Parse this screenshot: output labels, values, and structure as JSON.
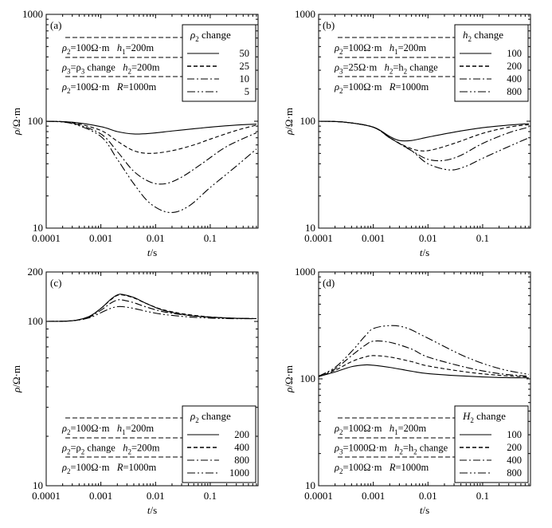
{
  "chart_data": [
    {
      "type": "line",
      "panel_label": "(a)",
      "xlabel": "t/s",
      "ylabel": "ρ/Ω·m",
      "xscale": "log",
      "yscale": "log",
      "xlim": [
        0.0001,
        0.75
      ],
      "ylim": [
        10,
        1000
      ],
      "x_tick_labels": [
        "0.0001",
        "0.001",
        "0.01",
        "0.1"
      ],
      "y_tick_labels": [
        "10",
        "100",
        "1000"
      ],
      "x_tick_values": [
        0.0001,
        0.001,
        0.01,
        0.1
      ],
      "y_tick_values": [
        10,
        100,
        1000
      ],
      "annotation_lines": [
        [
          "ρ",
          "2",
          "=100Ω·m",
          "h",
          "1",
          "=200m"
        ],
        [
          "ρ",
          "3",
          "=ρ",
          "3",
          " change",
          "h",
          "2",
          "=200m"
        ],
        [
          "ρ",
          "2",
          "=100Ω·m",
          "R",
          "",
          "=1000m"
        ]
      ],
      "legend": {
        "title": "ρ2 change",
        "title_sym": "ρ",
        "title_sub": "2",
        "title_rest": " change",
        "position": "top-right",
        "entries": [
          "50",
          "25",
          "10",
          "5"
        ]
      },
      "series": [
        {
          "name": "50",
          "style": "solid",
          "x": [
            0.0001,
            0.0003,
            0.001,
            0.002,
            0.004,
            0.008,
            0.02,
            0.05,
            0.1,
            0.3,
            0.7
          ],
          "y": [
            100,
            98,
            89,
            80,
            76,
            77,
            81,
            85,
            88,
            92,
            94
          ]
        },
        {
          "name": "25",
          "style": "dashed",
          "x": [
            0.0001,
            0.0003,
            0.001,
            0.002,
            0.004,
            0.008,
            0.02,
            0.05,
            0.1,
            0.3,
            0.7
          ],
          "y": [
            100,
            97,
            82,
            65,
            53,
            50,
            53,
            60,
            68,
            82,
            92
          ]
        },
        {
          "name": "10",
          "style": "dashdot",
          "x": [
            0.0001,
            0.0003,
            0.001,
            0.002,
            0.004,
            0.008,
            0.015,
            0.03,
            0.07,
            0.2,
            0.7
          ],
          "y": [
            100,
            96,
            76,
            52,
            34,
            27,
            26,
            30,
            40,
            58,
            78
          ]
        },
        {
          "name": "5",
          "style": "dashdotdot",
          "x": [
            0.0001,
            0.0003,
            0.001,
            0.002,
            0.004,
            0.008,
            0.018,
            0.04,
            0.1,
            0.3,
            0.7
          ],
          "y": [
            100,
            95,
            72,
            44,
            26,
            17,
            14,
            16,
            24,
            38,
            55
          ]
        }
      ]
    },
    {
      "type": "line",
      "panel_label": "(b)",
      "xlabel": "t/s",
      "ylabel": "ρ/Ω·m",
      "xscale": "log",
      "yscale": "log",
      "xlim": [
        0.0001,
        0.75
      ],
      "ylim": [
        10,
        1000
      ],
      "x_tick_labels": [
        "0.0001",
        "0.001",
        "0.01",
        "0.1"
      ],
      "y_tick_labels": [
        "10",
        "100",
        "1000"
      ],
      "x_tick_values": [
        0.0001,
        0.001,
        0.01,
        0.1
      ],
      "y_tick_values": [
        10,
        100,
        1000
      ],
      "annotation_lines": [
        [
          "ρ",
          "2",
          "=100Ω·m",
          "h",
          "1",
          "=200m"
        ],
        [
          "ρ",
          "3",
          "=25Ω·m",
          "h",
          "2",
          "=h",
          "2",
          " change"
        ],
        [
          "ρ",
          "2",
          "=100Ω·m",
          "R",
          "",
          "=1000m"
        ]
      ],
      "legend": {
        "title": "h2 change",
        "title_sym": "h",
        "title_sub": "2",
        "title_rest": " change",
        "position": "top-right",
        "entries": [
          "100",
          "200",
          "400",
          "800"
        ]
      },
      "series": [
        {
          "name": "100",
          "style": "solid",
          "x": [
            0.0001,
            0.0003,
            0.001,
            0.002,
            0.003,
            0.005,
            0.01,
            0.03,
            0.1,
            0.3,
            0.7
          ],
          "y": [
            100,
            98,
            88,
            72,
            66,
            66,
            71,
            79,
            87,
            92,
            95
          ]
        },
        {
          "name": "200",
          "style": "dashed",
          "x": [
            0.0001,
            0.0003,
            0.001,
            0.002,
            0.004,
            0.007,
            0.012,
            0.03,
            0.1,
            0.3,
            0.7
          ],
          "y": [
            100,
            98,
            88,
            70,
            58,
            53,
            54,
            62,
            77,
            88,
            93
          ]
        },
        {
          "name": "400",
          "style": "dashdot",
          "x": [
            0.0001,
            0.0003,
            0.001,
            0.002,
            0.005,
            0.01,
            0.02,
            0.04,
            0.1,
            0.3,
            0.7
          ],
          "y": [
            100,
            98,
            88,
            70,
            53,
            44,
            43,
            48,
            62,
            78,
            88
          ]
        },
        {
          "name": "800",
          "style": "dashdotdot",
          "x": [
            0.0001,
            0.0003,
            0.001,
            0.002,
            0.005,
            0.01,
            0.025,
            0.05,
            0.1,
            0.3,
            0.7
          ],
          "y": [
            100,
            98,
            88,
            70,
            53,
            40,
            35,
            38,
            45,
            58,
            70
          ]
        }
      ]
    },
    {
      "type": "line",
      "panel_label": "(c)",
      "xlabel": "t/s",
      "ylabel": "ρ/Ω·m",
      "xscale": "log",
      "yscale": "log",
      "xlim": [
        0.0001,
        0.75
      ],
      "ylim": [
        10,
        200
      ],
      "x_tick_labels": [
        "0.0001",
        "0.001",
        "0.01",
        "0.1"
      ],
      "y_tick_labels": [
        "10",
        "100",
        "200"
      ],
      "x_tick_values": [
        0.0001,
        0.001,
        0.01,
        0.1
      ],
      "y_tick_values": [
        10,
        100,
        200
      ],
      "annotation_lines": [
        [
          "ρ",
          "2",
          "=100Ω·m",
          "h",
          "1",
          "=200m"
        ],
        [
          "ρ",
          "2",
          "=ρ",
          "2",
          " change",
          "h",
          "2",
          "=200m"
        ],
        [
          "ρ",
          "2",
          "=100Ω·m",
          "R",
          "",
          "=1000m"
        ]
      ],
      "legend": {
        "title": "ρ2 change",
        "title_sym": "ρ",
        "title_sub": "2",
        "title_rest": " change",
        "position": "bottom-right",
        "entries": [
          "200",
          "400",
          "800",
          "1000"
        ]
      },
      "series": [
        {
          "name": "200",
          "style": "solid",
          "x": [
            0.0001,
            0.0003,
            0.0006,
            0.001,
            0.0015,
            0.002,
            0.0025,
            0.004,
            0.007,
            0.015,
            0.05,
            0.2,
            0.7
          ],
          "y": [
            100,
            101,
            107,
            120,
            136,
            145,
            146,
            140,
            128,
            116,
            108,
            105,
            104
          ]
        },
        {
          "name": "400",
          "style": "dashed",
          "x": [
            0.0001,
            0.0003,
            0.0006,
            0.001,
            0.0015,
            0.002,
            0.0025,
            0.004,
            0.007,
            0.015,
            0.05,
            0.2,
            0.7
          ],
          "y": [
            100,
            101,
            107,
            120,
            135,
            144,
            145,
            139,
            128,
            117,
            109,
            105,
            104
          ]
        },
        {
          "name": "800",
          "style": "dashdot",
          "x": [
            0.0001,
            0.0003,
            0.0006,
            0.001,
            0.0015,
            0.002,
            0.0025,
            0.004,
            0.007,
            0.015,
            0.05,
            0.2,
            0.7
          ],
          "y": [
            100,
            101,
            106,
            117,
            129,
            135,
            135,
            130,
            122,
            114,
            108,
            105,
            104
          ]
        },
        {
          "name": "1000",
          "style": "dashdotdot",
          "x": [
            0.0001,
            0.0003,
            0.0006,
            0.001,
            0.0015,
            0.002,
            0.0025,
            0.004,
            0.007,
            0.015,
            0.05,
            0.2,
            0.7
          ],
          "y": [
            100,
            101,
            105,
            113,
            120,
            123,
            123,
            120,
            115,
            110,
            106,
            104,
            104
          ]
        }
      ]
    },
    {
      "type": "line",
      "panel_label": "(d)",
      "xlabel": "t/s",
      "ylabel": "ρ/Ω·m",
      "xscale": "log",
      "yscale": "log",
      "xlim": [
        0.0001,
        0.75
      ],
      "ylim": [
        10,
        1000
      ],
      "x_tick_labels": [
        "0.0001",
        "0.001",
        "0.01",
        "0.1"
      ],
      "y_tick_labels": [
        "10",
        "100",
        "1000"
      ],
      "x_tick_values": [
        0.0001,
        0.001,
        0.01,
        0.1
      ],
      "y_tick_values": [
        10,
        100,
        1000
      ],
      "annotation_lines": [
        [
          "ρ",
          "2",
          "=100Ω·m",
          "h",
          "1",
          "=200m"
        ],
        [
          "ρ",
          "3",
          "=1000Ω·m",
          "h",
          "2",
          "=h",
          "2",
          " change"
        ],
        [
          "ρ",
          "2",
          "=100Ω·m",
          "R",
          "",
          "=1000m"
        ]
      ],
      "legend": {
        "title": "H2 change",
        "title_sym": "H",
        "title_sub": "2",
        "title_rest": " change",
        "position": "bottom-right",
        "entries": [
          "100",
          "200",
          "400",
          "800"
        ]
      },
      "series": [
        {
          "name": "100",
          "style": "solid",
          "x": [
            0.0001,
            0.0002,
            0.0004,
            0.0007,
            0.001,
            0.002,
            0.005,
            0.01,
            0.05,
            0.2,
            0.7
          ],
          "y": [
            105,
            116,
            130,
            135,
            134,
            128,
            118,
            112,
            106,
            103,
            102
          ]
        },
        {
          "name": "200",
          "style": "dashed",
          "x": [
            0.0001,
            0.0002,
            0.0004,
            0.0007,
            0.001,
            0.002,
            0.005,
            0.01,
            0.05,
            0.2,
            0.7
          ],
          "y": [
            105,
            120,
            145,
            160,
            165,
            160,
            145,
            132,
            116,
            108,
            104
          ]
        },
        {
          "name": "400",
          "style": "dashdot",
          "x": [
            0.0001,
            0.0002,
            0.0004,
            0.0007,
            0.001,
            0.002,
            0.005,
            0.01,
            0.05,
            0.2,
            0.7
          ],
          "y": [
            106,
            124,
            165,
            205,
            225,
            220,
            190,
            160,
            128,
            112,
            106
          ]
        },
        {
          "name": "800",
          "style": "dashdotdot",
          "x": [
            0.0001,
            0.0002,
            0.0004,
            0.0007,
            0.001,
            0.002,
            0.004,
            0.01,
            0.05,
            0.2,
            0.7
          ],
          "y": [
            106,
            128,
            180,
            250,
            295,
            315,
            300,
            240,
            160,
            125,
            110
          ]
        }
      ]
    }
  ]
}
